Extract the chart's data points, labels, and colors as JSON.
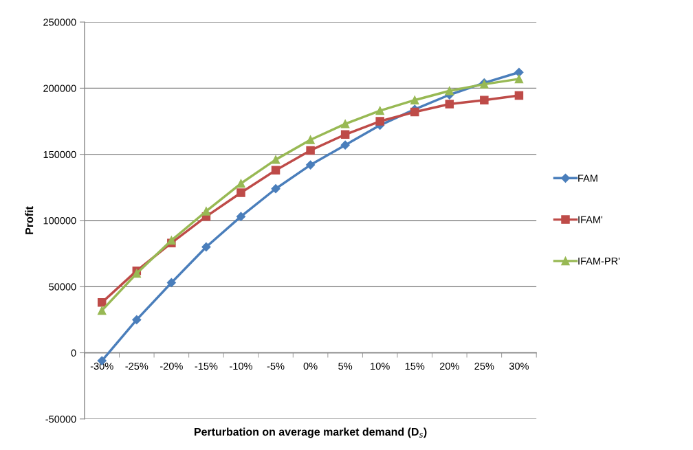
{
  "chart_data": {
    "type": "line",
    "xlabel": "Perturbation on average market demand (D$_{s}$)",
    "ylabel": "Profit",
    "categories": [
      "-30%",
      "-25%",
      "-20%",
      "-15%",
      "-10%",
      "-5%",
      "0%",
      "5%",
      "10%",
      "15%",
      "20%",
      "25%",
      "30%"
    ],
    "series": [
      {
        "name": "FAM",
        "color": "#4a7ebb",
        "marker": "diamond",
        "values": [
          -6000,
          25000,
          53000,
          80000,
          103000,
          124000,
          142000,
          157000,
          172000,
          184000,
          195000,
          204000,
          212000
        ]
      },
      {
        "name": "IFAM'",
        "color": "#be4b48",
        "marker": "square",
        "values": [
          38000,
          62000,
          83000,
          103000,
          121000,
          138000,
          153000,
          165000,
          175000,
          182000,
          188000,
          191000,
          194500
        ]
      },
      {
        "name": "IFAM-PR'",
        "color": "#98b954",
        "marker": "triangle",
        "values": [
          32000,
          60000,
          85000,
          107000,
          128000,
          146000,
          161000,
          173000,
          183000,
          191000,
          198000,
          203000,
          207000
        ]
      }
    ],
    "ylim": [
      -50000,
      250000
    ],
    "yticks": [
      -50000,
      0,
      50000,
      100000,
      150000,
      200000,
      250000
    ],
    "grid": "y",
    "legend": "right",
    "line_style": "solid"
  }
}
